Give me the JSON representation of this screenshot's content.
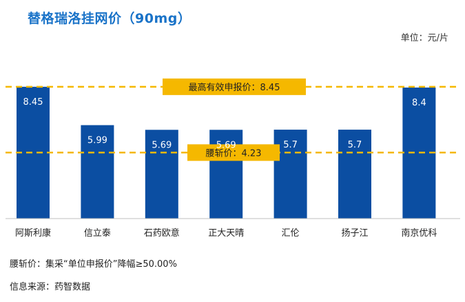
{
  "title": "替格瑞洛挂网价（90mg）",
  "unit_label": "单位：元/片",
  "note": "腰斩价：集采“单位申报价”降幅≥50.00%",
  "source": "信息来源：药智数据",
  "colors": {
    "bar": "#0b4ea2",
    "reference_line": "#f5b800",
    "callout_bg": "#f5b800",
    "title": "#1a73c8",
    "value_label": "#ffffff"
  },
  "chart_data": {
    "type": "bar",
    "categories": [
      "阿斯利康",
      "信立泰",
      "石药欧意",
      "正大天晴",
      "汇伦",
      "扬子江",
      "南京优科"
    ],
    "values": [
      8.45,
      5.99,
      5.69,
      5.69,
      5.7,
      5.7,
      8.4
    ],
    "value_labels": [
      "8.45",
      "5.99",
      "5.69",
      "5.69",
      "5.7",
      "5.7",
      "8.4"
    ],
    "ylim": [
      0,
      10.3
    ],
    "grid": false,
    "reference_lines": [
      {
        "label": "最高有效申报价：8.45",
        "value": 8.45
      },
      {
        "label": "腰斩价：4.23",
        "value": 4.23
      }
    ]
  }
}
